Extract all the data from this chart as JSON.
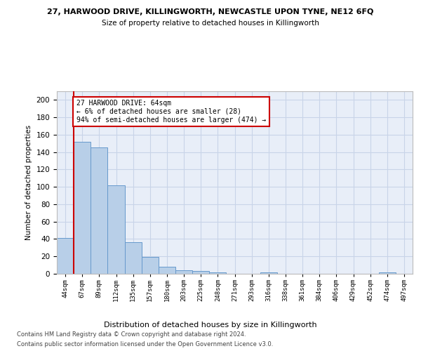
{
  "title_top": "27, HARWOOD DRIVE, KILLINGWORTH, NEWCASTLE UPON TYNE, NE12 6FQ",
  "title_sub": "Size of property relative to detached houses in Killingworth",
  "xlabel": "Distribution of detached houses by size in Killingworth",
  "ylabel": "Number of detached properties",
  "bins": [
    "44sqm",
    "67sqm",
    "89sqm",
    "112sqm",
    "135sqm",
    "157sqm",
    "180sqm",
    "203sqm",
    "225sqm",
    "248sqm",
    "271sqm",
    "293sqm",
    "316sqm",
    "338sqm",
    "361sqm",
    "384sqm",
    "406sqm",
    "429sqm",
    "452sqm",
    "474sqm",
    "497sqm"
  ],
  "values": [
    41,
    152,
    145,
    102,
    36,
    19,
    8,
    4,
    3,
    2,
    0,
    0,
    2,
    0,
    0,
    0,
    0,
    0,
    0,
    2,
    0
  ],
  "bar_color": "#b8cfe8",
  "bar_edge_color": "#6699cc",
  "grid_color": "#c8d4e8",
  "background_color": "#e8eef8",
  "vline_color": "#cc0000",
  "annotation_text": "27 HARWOOD DRIVE: 64sqm\n← 6% of detached houses are smaller (28)\n94% of semi-detached houses are larger (474) →",
  "annotation_box_color": "#ffffff",
  "annotation_box_edge_color": "#cc0000",
  "footer1": "Contains HM Land Registry data © Crown copyright and database right 2024.",
  "footer2": "Contains public sector information licensed under the Open Government Licence v3.0.",
  "ylim": [
    0,
    210
  ],
  "yticks": [
    0,
    20,
    40,
    60,
    80,
    100,
    120,
    140,
    160,
    180,
    200
  ],
  "vline_pos": 0.5
}
